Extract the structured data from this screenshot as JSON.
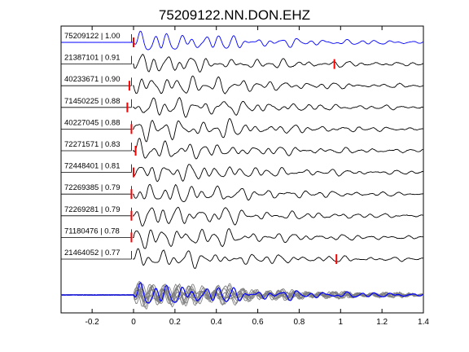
{
  "chart_data": {
    "type": "line",
    "title": "75209122.NN.DON.EHZ",
    "xlabel": "",
    "ylabel": "",
    "xlim": [
      -0.35,
      1.4
    ],
    "xticks": [
      -0.2,
      0,
      0.2,
      0.4,
      0.6,
      0.8,
      1,
      1.2,
      1.4
    ],
    "xtick_labels": [
      "-0.2",
      "0",
      "0.2",
      "0.4",
      "0.6",
      "0.8",
      "1",
      "1.2",
      "1.4"
    ],
    "grid": false,
    "legend": "none",
    "colors": {
      "reference": "#0000ff",
      "trace": "#000000",
      "pick": "#ff0000",
      "stack": "#808080"
    },
    "traces": [
      {
        "label": "75209122 | 1.00",
        "pick_time": 0.0,
        "ref": true
      },
      {
        "label": "21387101 | 0.91",
        "pick_time": 0.97
      },
      {
        "label": "40233671 | 0.90",
        "pick_time": -0.02
      },
      {
        "label": "71450225 | 0.88",
        "pick_time": -0.03
      },
      {
        "label": "40227045 | 0.88",
        "pick_time": -0.01
      },
      {
        "label": "72271571 | 0.83",
        "pick_time": 0.01
      },
      {
        "label": "72448401 | 0.81",
        "pick_time": 0.0
      },
      {
        "label": "72269385 | 0.79",
        "pick_time": -0.01
      },
      {
        "label": "72269281 | 0.79",
        "pick_time": -0.01
      },
      {
        "label": "71180476 | 0.78",
        "pick_time": -0.01
      },
      {
        "label": "21464052 | 0.77",
        "pick_time": 0.98
      }
    ]
  }
}
